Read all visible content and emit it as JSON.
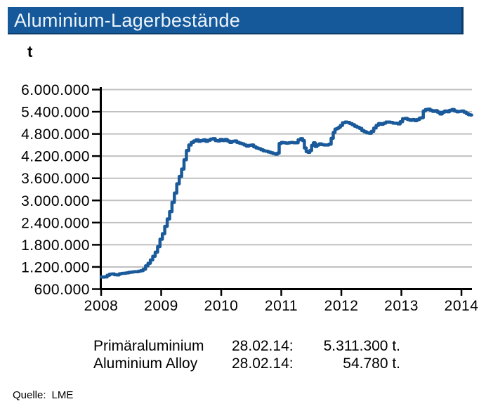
{
  "title": "Aluminium-Lagerbestände",
  "unit_label": "t",
  "source": {
    "label": "Quelle:",
    "value": "LME"
  },
  "legend": {
    "rows": [
      {
        "name": "Primäraluminium",
        "date": "28.02.14:",
        "value": "5.311.300 t."
      },
      {
        "name": "Aluminium Alloy",
        "date": "28.02.14:",
        "value": "54.780 t."
      }
    ]
  },
  "colors": {
    "accent_blue": "#15599B",
    "title_text": "#EDF4FA",
    "line_blue": "#1A5A9A",
    "grid_gray": "#C0C0C0",
    "axis_black": "#000000"
  },
  "chart_data": {
    "type": "line",
    "title": "Aluminium-Lagerbestände",
    "ylabel": "t",
    "grid": true,
    "legend_position": "below",
    "xlim": [
      2008,
      2014.175
    ],
    "ylim": [
      600000,
      6000000
    ],
    "x_ticks": [
      "2008",
      "2009",
      "2010",
      "2011",
      "2012",
      "2013",
      "2014"
    ],
    "x_tick_values": [
      2008,
      2009,
      2010,
      2011,
      2012,
      2013,
      2014
    ],
    "y_ticks": [
      "6.000.000",
      "5.400.000",
      "4.800.000",
      "4.200.000",
      "3.600.000",
      "3.000.000",
      "2.400.000",
      "1.800.000",
      "1.200.000",
      "600.000"
    ],
    "y_tick_values": [
      6000000,
      5400000,
      4800000,
      4200000,
      3600000,
      3000000,
      2400000,
      1800000,
      1200000,
      600000
    ],
    "series": [
      {
        "name": "Primäraluminium",
        "color": "#1A5A9A",
        "last_point_label": "28.02.14: 5.311.300 t.",
        "points": [
          [
            2008.0,
            930000
          ],
          [
            2008.04,
            925000
          ],
          [
            2008.08,
            930000
          ],
          [
            2008.12,
            975000
          ],
          [
            2008.16,
            1005000
          ],
          [
            2008.2,
            1010000
          ],
          [
            2008.24,
            990000
          ],
          [
            2008.28,
            985000
          ],
          [
            2008.32,
            1015000
          ],
          [
            2008.36,
            1025000
          ],
          [
            2008.4,
            1030000
          ],
          [
            2008.44,
            1040000
          ],
          [
            2008.48,
            1055000
          ],
          [
            2008.52,
            1060000
          ],
          [
            2008.56,
            1070000
          ],
          [
            2008.6,
            1070000
          ],
          [
            2008.64,
            1085000
          ],
          [
            2008.68,
            1100000
          ],
          [
            2008.72,
            1140000
          ],
          [
            2008.76,
            1230000
          ],
          [
            2008.8,
            1300000
          ],
          [
            2008.84,
            1390000
          ],
          [
            2008.88,
            1490000
          ],
          [
            2008.92,
            1600000
          ],
          [
            2008.96,
            1750000
          ],
          [
            2009.0,
            1950000
          ],
          [
            2009.04,
            2100000
          ],
          [
            2009.08,
            2300000
          ],
          [
            2009.12,
            2500000
          ],
          [
            2009.16,
            2700000
          ],
          [
            2009.2,
            2950000
          ],
          [
            2009.24,
            3200000
          ],
          [
            2009.28,
            3450000
          ],
          [
            2009.32,
            3650000
          ],
          [
            2009.36,
            3850000
          ],
          [
            2009.4,
            4100000
          ],
          [
            2009.44,
            4350000
          ],
          [
            2009.48,
            4500000
          ],
          [
            2009.52,
            4570000
          ],
          [
            2009.56,
            4610000
          ],
          [
            2009.6,
            4640000
          ],
          [
            2009.64,
            4600000
          ],
          [
            2009.68,
            4620000
          ],
          [
            2009.72,
            4640000
          ],
          [
            2009.76,
            4600000
          ],
          [
            2009.8,
            4630000
          ],
          [
            2009.84,
            4660000
          ],
          [
            2009.88,
            4670000
          ],
          [
            2009.92,
            4620000
          ],
          [
            2009.96,
            4610000
          ],
          [
            2010.0,
            4650000
          ],
          [
            2010.04,
            4620000
          ],
          [
            2010.08,
            4650000
          ],
          [
            2010.12,
            4610000
          ],
          [
            2010.16,
            4570000
          ],
          [
            2010.2,
            4600000
          ],
          [
            2010.24,
            4610000
          ],
          [
            2010.28,
            4570000
          ],
          [
            2010.32,
            4550000
          ],
          [
            2010.36,
            4530000
          ],
          [
            2010.4,
            4500000
          ],
          [
            2010.44,
            4470000
          ],
          [
            2010.48,
            4490000
          ],
          [
            2010.52,
            4500000
          ],
          [
            2010.56,
            4450000
          ],
          [
            2010.6,
            4420000
          ],
          [
            2010.64,
            4400000
          ],
          [
            2010.68,
            4370000
          ],
          [
            2010.72,
            4340000
          ],
          [
            2010.76,
            4330000
          ],
          [
            2010.8,
            4310000
          ],
          [
            2010.84,
            4290000
          ],
          [
            2010.88,
            4270000
          ],
          [
            2010.92,
            4250000
          ],
          [
            2010.95,
            4280000
          ],
          [
            2010.98,
            4540000
          ],
          [
            2011.02,
            4570000
          ],
          [
            2011.06,
            4560000
          ],
          [
            2011.1,
            4550000
          ],
          [
            2011.14,
            4560000
          ],
          [
            2011.18,
            4570000
          ],
          [
            2011.22,
            4560000
          ],
          [
            2011.26,
            4560000
          ],
          [
            2011.3,
            4640000
          ],
          [
            2011.34,
            4670000
          ],
          [
            2011.37,
            4620000
          ],
          [
            2011.4,
            4420000
          ],
          [
            2011.43,
            4320000
          ],
          [
            2011.46,
            4300000
          ],
          [
            2011.49,
            4350000
          ],
          [
            2011.52,
            4490000
          ],
          [
            2011.55,
            4560000
          ],
          [
            2011.58,
            4460000
          ],
          [
            2011.61,
            4500000
          ],
          [
            2011.65,
            4530000
          ],
          [
            2011.69,
            4510000
          ],
          [
            2011.73,
            4500000
          ],
          [
            2011.77,
            4500000
          ],
          [
            2011.81,
            4520000
          ],
          [
            2011.85,
            4680000
          ],
          [
            2011.88,
            4840000
          ],
          [
            2011.91,
            4930000
          ],
          [
            2011.94,
            4950000
          ],
          [
            2011.97,
            4980000
          ],
          [
            2012.0,
            5030000
          ],
          [
            2012.04,
            5100000
          ],
          [
            2012.08,
            5120000
          ],
          [
            2012.12,
            5110000
          ],
          [
            2012.16,
            5080000
          ],
          [
            2012.2,
            5050000
          ],
          [
            2012.24,
            5010000
          ],
          [
            2012.28,
            4980000
          ],
          [
            2012.32,
            4950000
          ],
          [
            2012.36,
            4890000
          ],
          [
            2012.4,
            4860000
          ],
          [
            2012.44,
            4830000
          ],
          [
            2012.48,
            4820000
          ],
          [
            2012.52,
            4870000
          ],
          [
            2012.56,
            4960000
          ],
          [
            2012.6,
            5030000
          ],
          [
            2012.64,
            5080000
          ],
          [
            2012.68,
            5060000
          ],
          [
            2012.72,
            5090000
          ],
          [
            2012.76,
            5120000
          ],
          [
            2012.8,
            5120000
          ],
          [
            2012.84,
            5110000
          ],
          [
            2012.88,
            5090000
          ],
          [
            2012.92,
            5090000
          ],
          [
            2012.96,
            5070000
          ],
          [
            2013.0,
            5130000
          ],
          [
            2013.04,
            5210000
          ],
          [
            2013.08,
            5220000
          ],
          [
            2013.12,
            5190000
          ],
          [
            2013.16,
            5170000
          ],
          [
            2013.2,
            5190000
          ],
          [
            2013.24,
            5160000
          ],
          [
            2013.28,
            5190000
          ],
          [
            2013.32,
            5230000
          ],
          [
            2013.35,
            5240000
          ],
          [
            2013.38,
            5420000
          ],
          [
            2013.42,
            5460000
          ],
          [
            2013.46,
            5470000
          ],
          [
            2013.5,
            5440000
          ],
          [
            2013.54,
            5410000
          ],
          [
            2013.58,
            5430000
          ],
          [
            2013.62,
            5390000
          ],
          [
            2013.66,
            5340000
          ],
          [
            2013.7,
            5390000
          ],
          [
            2013.74,
            5420000
          ],
          [
            2013.78,
            5400000
          ],
          [
            2013.82,
            5440000
          ],
          [
            2013.86,
            5460000
          ],
          [
            2013.9,
            5420000
          ],
          [
            2013.94,
            5400000
          ],
          [
            2013.98,
            5410000
          ],
          [
            2014.02,
            5420000
          ],
          [
            2014.06,
            5390000
          ],
          [
            2014.1,
            5350000
          ],
          [
            2014.13,
            5320000
          ],
          [
            2014.17,
            5311300
          ]
        ]
      },
      {
        "name": "Aluminium Alloy",
        "color": "#1A5A9A",
        "last_point_label": "28.02.14: 54.780 t.",
        "points": []
      }
    ]
  }
}
